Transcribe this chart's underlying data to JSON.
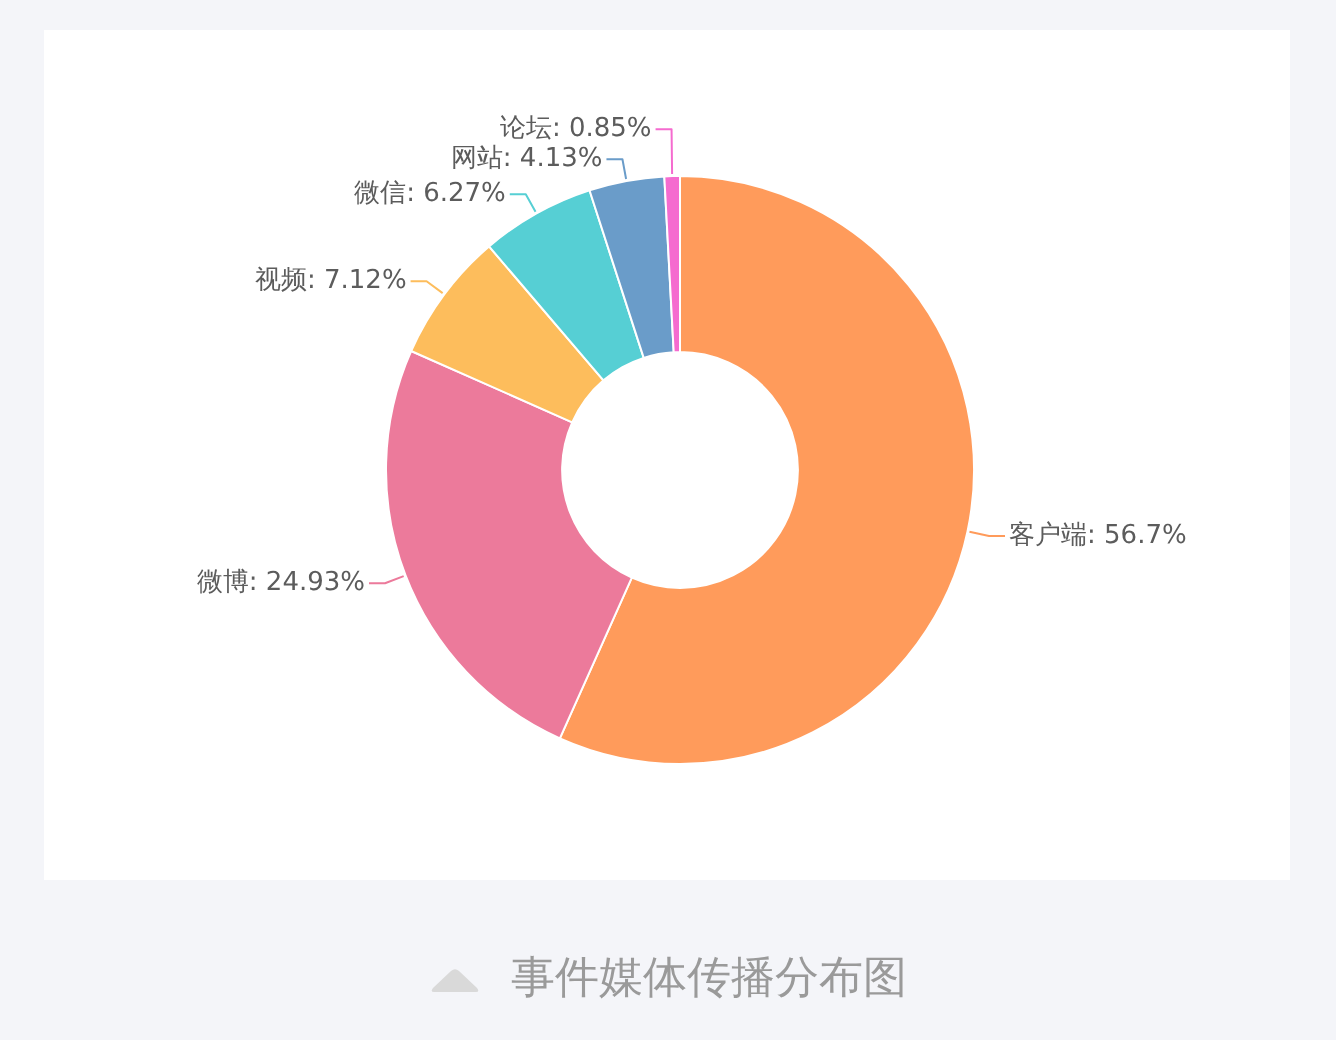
{
  "chart_data": {
    "type": "donut",
    "title": "事件媒体传播分布图",
    "categories": [
      "客户端",
      "微博",
      "视频",
      "微信",
      "网站",
      "论坛"
    ],
    "values": [
      56.7,
      24.93,
      7.12,
      6.27,
      4.13,
      0.85
    ],
    "colors": [
      "#ff9b5b",
      "#ec7a9b",
      "#fdbd5c",
      "#56cfd4",
      "#6a9cc9",
      "#f56bcf"
    ],
    "value_labels": [
      "56.7%",
      "24.93%",
      "7.12%",
      "6.27%",
      "4.13%",
      "0.85%"
    ]
  }
}
